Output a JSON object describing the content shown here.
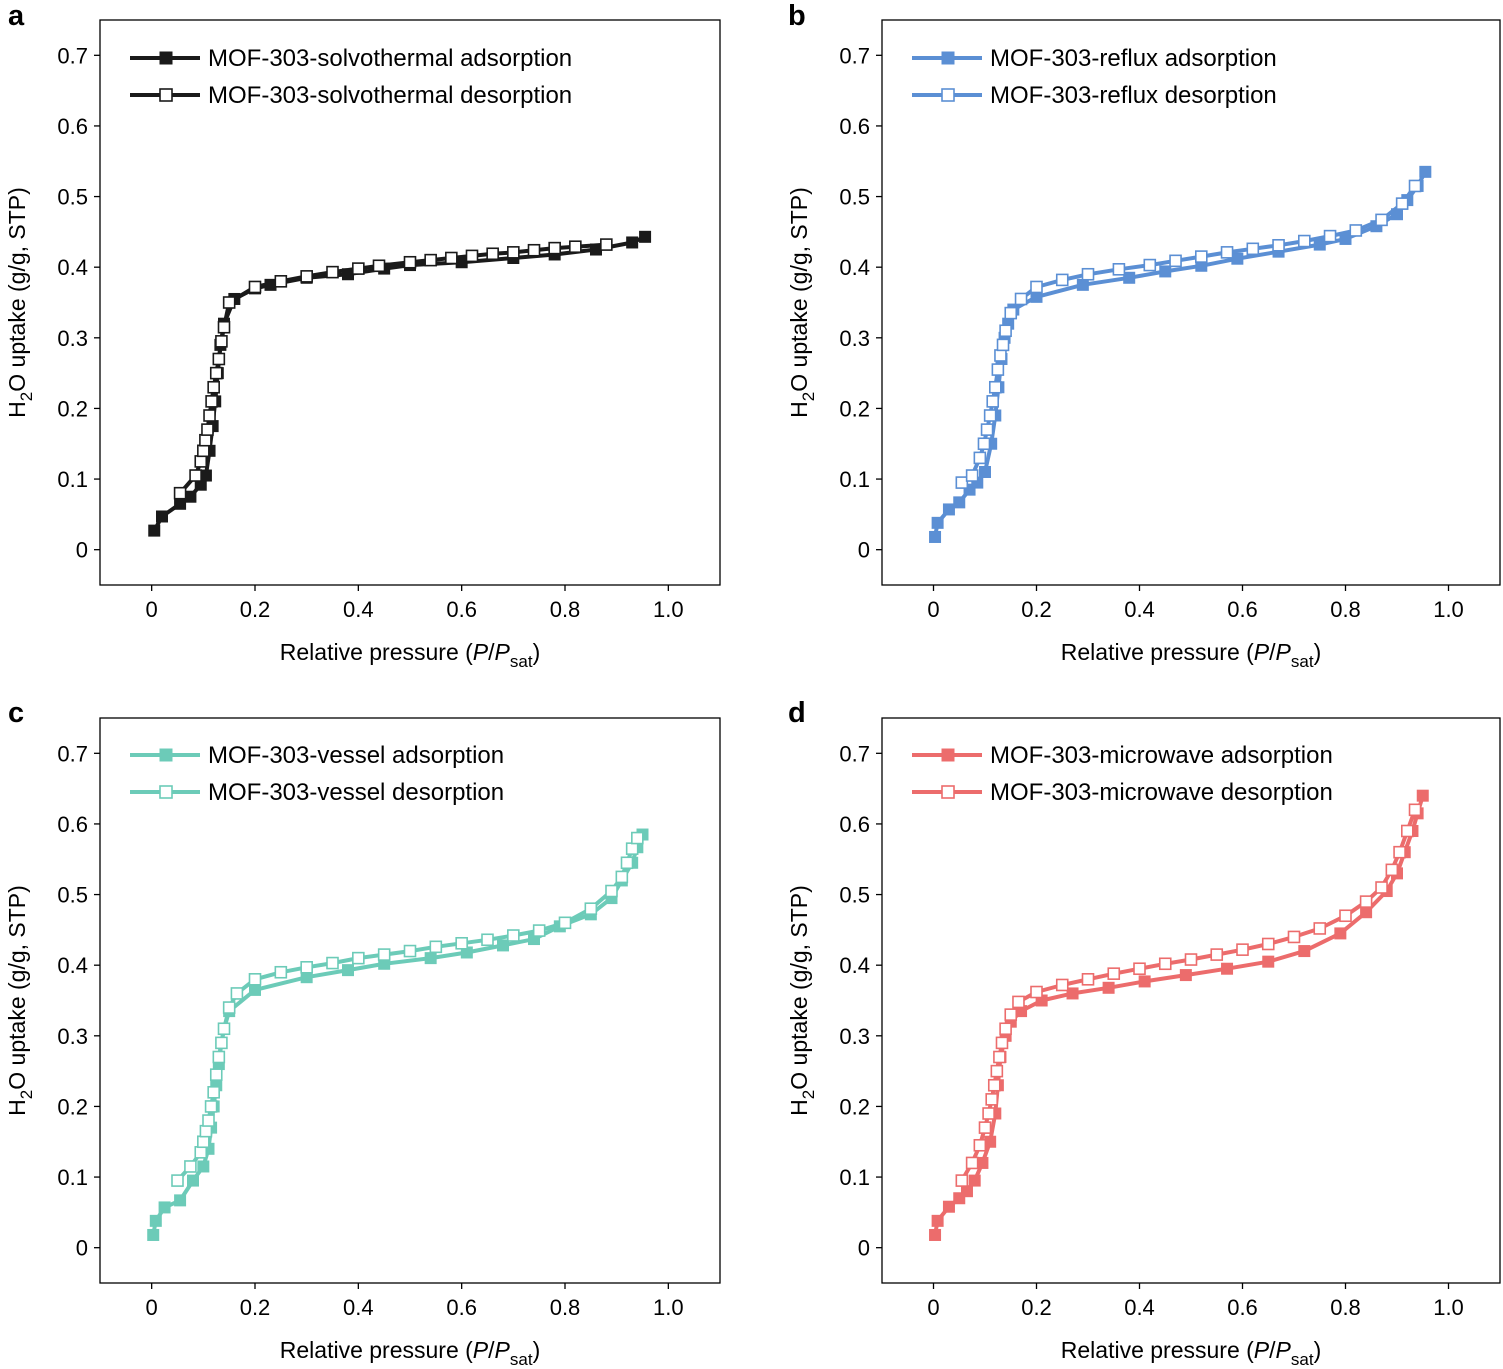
{
  "chart_data": [
    {
      "type": "line",
      "panel": "a",
      "xlabel_main": "Relative pressure (",
      "xlabel_italic1": "P",
      "xlabel_slash": "/",
      "xlabel_italic2": "P",
      "xlabel_sub": "sat",
      "xlabel_close": ")",
      "ylabel_main1": "H",
      "ylabel_sub": "2",
      "ylabel_main2": "O uptake (g/g, STP)",
      "xlim": [
        -0.1,
        1.1
      ],
      "ylim": [
        -0.05,
        0.75
      ],
      "xticks": [
        "0",
        "0.2",
        "0.4",
        "0.6",
        "0.8",
        "1.0"
      ],
      "xtick_values": [
        0,
        0.2,
        0.4,
        0.6,
        0.8,
        1.0
      ],
      "yticks": [
        "0",
        "0.1",
        "0.2",
        "0.3",
        "0.4",
        "0.5",
        "0.6",
        "0.7"
      ],
      "ytick_values": [
        0,
        0.1,
        0.2,
        0.3,
        0.4,
        0.5,
        0.6,
        0.7
      ],
      "color": "#1a1a1a",
      "series": [
        {
          "name": "MOF-303-solvothermal adsorption",
          "filled": true,
          "x": [
            0.005,
            0.02,
            0.055,
            0.075,
            0.095,
            0.105,
            0.112,
            0.118,
            0.123,
            0.128,
            0.133,
            0.14,
            0.16,
            0.2,
            0.23,
            0.3,
            0.38,
            0.45,
            0.5,
            0.6,
            0.7,
            0.78,
            0.86,
            0.93,
            0.955
          ],
          "y": [
            0.027,
            0.047,
            0.065,
            0.075,
            0.092,
            0.105,
            0.14,
            0.175,
            0.21,
            0.25,
            0.29,
            0.32,
            0.355,
            0.37,
            0.375,
            0.385,
            0.39,
            0.398,
            0.403,
            0.407,
            0.413,
            0.418,
            0.425,
            0.435,
            0.443
          ]
        },
        {
          "name": "MOF-303-solvothermal desorption",
          "filled": false,
          "x": [
            0.055,
            0.085,
            0.095,
            0.1,
            0.104,
            0.108,
            0.112,
            0.116,
            0.12,
            0.125,
            0.13,
            0.135,
            0.14,
            0.15,
            0.2,
            0.25,
            0.3,
            0.35,
            0.4,
            0.44,
            0.5,
            0.54,
            0.58,
            0.62,
            0.66,
            0.7,
            0.74,
            0.78,
            0.82,
            0.88
          ],
          "y": [
            0.08,
            0.105,
            0.125,
            0.14,
            0.155,
            0.17,
            0.19,
            0.21,
            0.23,
            0.25,
            0.27,
            0.295,
            0.315,
            0.35,
            0.372,
            0.38,
            0.387,
            0.393,
            0.398,
            0.402,
            0.407,
            0.41,
            0.413,
            0.416,
            0.419,
            0.421,
            0.424,
            0.427,
            0.429,
            0.432
          ]
        }
      ]
    },
    {
      "type": "line",
      "panel": "b",
      "xlabel_main": "Relative pressure (",
      "xlabel_italic1": "P",
      "xlabel_slash": "/",
      "xlabel_italic2": "P",
      "xlabel_sub": "sat",
      "xlabel_close": ")",
      "ylabel_main1": "H",
      "ylabel_sub": "2",
      "ylabel_main2": "O uptake (g/g, STP)",
      "xlim": [
        -0.1,
        1.1
      ],
      "ylim": [
        -0.05,
        0.75
      ],
      "xticks": [
        "0",
        "0.2",
        "0.4",
        "0.6",
        "0.8",
        "1.0"
      ],
      "xtick_values": [
        0,
        0.2,
        0.4,
        0.6,
        0.8,
        1.0
      ],
      "yticks": [
        "0",
        "0.1",
        "0.2",
        "0.3",
        "0.4",
        "0.5",
        "0.6",
        "0.7"
      ],
      "ytick_values": [
        0,
        0.1,
        0.2,
        0.3,
        0.4,
        0.5,
        0.6,
        0.7
      ],
      "color": "#5b8fd4",
      "series": [
        {
          "name": "MOF-303-reflux adsorption",
          "filled": true,
          "x": [
            0.003,
            0.008,
            0.03,
            0.05,
            0.07,
            0.085,
            0.1,
            0.112,
            0.12,
            0.126,
            0.132,
            0.138,
            0.145,
            0.155,
            0.2,
            0.29,
            0.38,
            0.45,
            0.52,
            0.59,
            0.67,
            0.75,
            0.8,
            0.86,
            0.9,
            0.92,
            0.94,
            0.955
          ],
          "y": [
            0.018,
            0.038,
            0.057,
            0.067,
            0.085,
            0.095,
            0.11,
            0.15,
            0.19,
            0.23,
            0.27,
            0.3,
            0.32,
            0.34,
            0.358,
            0.375,
            0.385,
            0.394,
            0.402,
            0.412,
            0.422,
            0.432,
            0.44,
            0.458,
            0.475,
            0.495,
            0.515,
            0.535
          ]
        },
        {
          "name": "MOF-303-reflux desorption",
          "filled": false,
          "x": [
            0.055,
            0.075,
            0.09,
            0.098,
            0.104,
            0.11,
            0.115,
            0.12,
            0.125,
            0.13,
            0.135,
            0.14,
            0.15,
            0.17,
            0.2,
            0.25,
            0.3,
            0.36,
            0.42,
            0.47,
            0.52,
            0.57,
            0.62,
            0.67,
            0.72,
            0.77,
            0.82,
            0.87,
            0.91,
            0.935
          ],
          "y": [
            0.095,
            0.105,
            0.13,
            0.15,
            0.17,
            0.19,
            0.21,
            0.23,
            0.255,
            0.275,
            0.29,
            0.31,
            0.335,
            0.355,
            0.372,
            0.382,
            0.39,
            0.397,
            0.403,
            0.409,
            0.415,
            0.421,
            0.426,
            0.431,
            0.437,
            0.444,
            0.452,
            0.467,
            0.49,
            0.515
          ]
        }
      ]
    },
    {
      "type": "line",
      "panel": "c",
      "xlabel_main": "Relative pressure (",
      "xlabel_italic1": "P",
      "xlabel_slash": "/",
      "xlabel_italic2": "P",
      "xlabel_sub": "sat",
      "xlabel_close": ")",
      "ylabel_main1": "H",
      "ylabel_sub": "2",
      "ylabel_main2": "O uptake (g/g, STP)",
      "xlim": [
        -0.1,
        1.1
      ],
      "ylim": [
        -0.05,
        0.75
      ],
      "xticks": [
        "0",
        "0.2",
        "0.4",
        "0.6",
        "0.8",
        "1.0"
      ],
      "xtick_values": [
        0,
        0.2,
        0.4,
        0.6,
        0.8,
        1.0
      ],
      "yticks": [
        "0",
        "0.1",
        "0.2",
        "0.3",
        "0.4",
        "0.5",
        "0.6",
        "0.7"
      ],
      "ytick_values": [
        0,
        0.1,
        0.2,
        0.3,
        0.4,
        0.5,
        0.6,
        0.7
      ],
      "color": "#6ccbb8",
      "series": [
        {
          "name": "MOF-303-vessel adsorption",
          "filled": true,
          "x": [
            0.003,
            0.008,
            0.025,
            0.055,
            0.08,
            0.1,
            0.11,
            0.115,
            0.12,
            0.125,
            0.13,
            0.135,
            0.14,
            0.15,
            0.2,
            0.3,
            0.38,
            0.45,
            0.54,
            0.61,
            0.68,
            0.74,
            0.79,
            0.85,
            0.89,
            0.91,
            0.93,
            0.94,
            0.95
          ],
          "y": [
            0.018,
            0.038,
            0.057,
            0.067,
            0.095,
            0.115,
            0.14,
            0.17,
            0.2,
            0.23,
            0.26,
            0.29,
            0.31,
            0.335,
            0.365,
            0.383,
            0.393,
            0.402,
            0.41,
            0.418,
            0.428,
            0.437,
            0.455,
            0.472,
            0.495,
            0.52,
            0.545,
            0.567,
            0.585
          ]
        },
        {
          "name": "MOF-303-vessel desorption",
          "filled": false,
          "x": [
            0.05,
            0.075,
            0.095,
            0.1,
            0.105,
            0.11,
            0.115,
            0.12,
            0.125,
            0.13,
            0.135,
            0.14,
            0.15,
            0.165,
            0.2,
            0.25,
            0.3,
            0.35,
            0.4,
            0.45,
            0.5,
            0.55,
            0.6,
            0.65,
            0.7,
            0.75,
            0.8,
            0.85,
            0.89,
            0.91,
            0.92,
            0.93,
            0.94
          ],
          "y": [
            0.095,
            0.115,
            0.135,
            0.15,
            0.165,
            0.18,
            0.2,
            0.22,
            0.245,
            0.27,
            0.29,
            0.31,
            0.34,
            0.36,
            0.38,
            0.39,
            0.397,
            0.403,
            0.41,
            0.415,
            0.42,
            0.426,
            0.431,
            0.436,
            0.442,
            0.449,
            0.46,
            0.48,
            0.505,
            0.525,
            0.545,
            0.565,
            0.58
          ]
        }
      ]
    },
    {
      "type": "line",
      "panel": "d",
      "xlabel_main": "Relative pressure (",
      "xlabel_italic1": "P",
      "xlabel_slash": "/",
      "xlabel_italic2": "P",
      "xlabel_sub": "sat",
      "xlabel_close": ")",
      "ylabel_main1": "H",
      "ylabel_sub": "2",
      "ylabel_main2": "O uptake (g/g, STP)",
      "xlim": [
        -0.1,
        1.1
      ],
      "ylim": [
        -0.05,
        0.75
      ],
      "xticks": [
        "0",
        "0.2",
        "0.4",
        "0.6",
        "0.8",
        "1.0"
      ],
      "xtick_values": [
        0,
        0.2,
        0.4,
        0.6,
        0.8,
        1.0
      ],
      "yticks": [
        "0",
        "0.1",
        "0.2",
        "0.3",
        "0.4",
        "0.5",
        "0.6",
        "0.7"
      ],
      "ytick_values": [
        0,
        0.1,
        0.2,
        0.3,
        0.4,
        0.5,
        0.6,
        0.7
      ],
      "color": "#ec6c6c",
      "series": [
        {
          "name": "MOF-303-microwave adsorption",
          "filled": true,
          "x": [
            0.003,
            0.008,
            0.03,
            0.05,
            0.065,
            0.08,
            0.095,
            0.11,
            0.12,
            0.125,
            0.13,
            0.14,
            0.15,
            0.17,
            0.21,
            0.27,
            0.34,
            0.41,
            0.49,
            0.57,
            0.65,
            0.72,
            0.79,
            0.84,
            0.88,
            0.9,
            0.915,
            0.93,
            0.94,
            0.95
          ],
          "y": [
            0.018,
            0.038,
            0.058,
            0.07,
            0.08,
            0.095,
            0.12,
            0.15,
            0.19,
            0.23,
            0.27,
            0.3,
            0.32,
            0.335,
            0.35,
            0.36,
            0.368,
            0.377,
            0.386,
            0.395,
            0.405,
            0.42,
            0.445,
            0.475,
            0.505,
            0.53,
            0.56,
            0.59,
            0.615,
            0.64
          ]
        },
        {
          "name": "MOF-303-microwave desorption",
          "filled": false,
          "x": [
            0.055,
            0.075,
            0.09,
            0.1,
            0.107,
            0.113,
            0.118,
            0.123,
            0.128,
            0.133,
            0.14,
            0.15,
            0.165,
            0.2,
            0.25,
            0.3,
            0.35,
            0.4,
            0.45,
            0.5,
            0.55,
            0.6,
            0.65,
            0.7,
            0.75,
            0.8,
            0.84,
            0.87,
            0.89,
            0.905,
            0.92,
            0.935
          ],
          "y": [
            0.095,
            0.12,
            0.145,
            0.17,
            0.19,
            0.21,
            0.23,
            0.25,
            0.27,
            0.29,
            0.31,
            0.33,
            0.348,
            0.362,
            0.372,
            0.38,
            0.388,
            0.395,
            0.402,
            0.408,
            0.415,
            0.422,
            0.43,
            0.44,
            0.452,
            0.47,
            0.49,
            0.51,
            0.535,
            0.56,
            0.59,
            0.62
          ]
        }
      ]
    }
  ]
}
